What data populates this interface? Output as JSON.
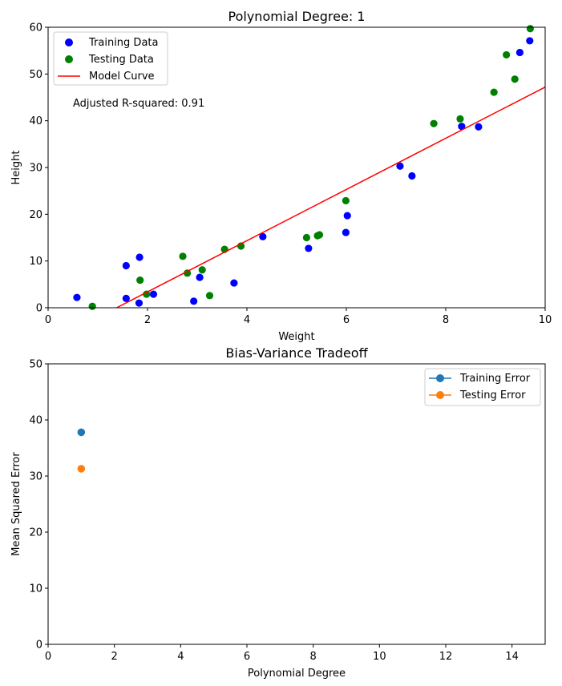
{
  "chart_data": [
    {
      "type": "scatter",
      "title": "Polynomial Degree: 1",
      "xlabel": "Weight",
      "ylabel": "Height",
      "xlim": [
        0,
        10
      ],
      "ylim": [
        0,
        60
      ],
      "xticks": [
        0,
        2,
        4,
        6,
        8,
        10
      ],
      "yticks": [
        0,
        10,
        20,
        30,
        40,
        50,
        60
      ],
      "grid": false,
      "legend_position": "top-left",
      "annotation": "Adjusted R-squared: 0.91",
      "series": [
        {
          "name": "Training Data",
          "kind": "scatter",
          "color": "#0000ff",
          "points": [
            [
              0.58,
              2.2
            ],
            [
              1.57,
              2.0
            ],
            [
              1.57,
              9.0
            ],
            [
              1.83,
              1.0
            ],
            [
              1.84,
              10.8
            ],
            [
              2.12,
              2.9
            ],
            [
              2.93,
              1.4
            ],
            [
              3.05,
              6.5
            ],
            [
              3.74,
              5.3
            ],
            [
              4.32,
              15.2
            ],
            [
              5.24,
              12.7
            ],
            [
              5.99,
              16.1
            ],
            [
              6.02,
              19.7
            ],
            [
              7.08,
              30.3
            ],
            [
              7.32,
              28.2
            ],
            [
              8.32,
              38.8
            ],
            [
              8.66,
              38.7
            ],
            [
              9.49,
              54.6
            ],
            [
              9.69,
              57.1
            ]
          ]
        },
        {
          "name": "Testing Data",
          "kind": "scatter",
          "color": "#008000",
          "points": [
            [
              0.89,
              0.3
            ],
            [
              1.85,
              5.9
            ],
            [
              1.98,
              2.9
            ],
            [
              2.71,
              11.0
            ],
            [
              2.8,
              7.4
            ],
            [
              3.1,
              8.1
            ],
            [
              3.25,
              2.6
            ],
            [
              3.55,
              12.5
            ],
            [
              3.88,
              13.2
            ],
            [
              5.2,
              15.0
            ],
            [
              5.42,
              15.4
            ],
            [
              5.46,
              15.6
            ],
            [
              5.99,
              22.9
            ],
            [
              7.76,
              39.4
            ],
            [
              8.29,
              40.4
            ],
            [
              8.97,
              46.1
            ],
            [
              9.22,
              54.1
            ],
            [
              9.39,
              48.9
            ],
            [
              9.7,
              59.7
            ]
          ]
        },
        {
          "name": "Model Curve",
          "kind": "line",
          "color": "#ff0000",
          "points": [
            [
              1.38,
              0.0
            ],
            [
              10.0,
              47.2
            ]
          ]
        }
      ]
    },
    {
      "type": "line",
      "title": "Bias-Variance Tradeoff",
      "xlabel": "Polynomial Degree",
      "ylabel": "Mean Squared Error",
      "xlim": [
        0,
        15
      ],
      "ylim": [
        0,
        50
      ],
      "xticks": [
        0,
        2,
        4,
        6,
        8,
        10,
        12,
        14
      ],
      "yticks": [
        0,
        10,
        20,
        30,
        40,
        50
      ],
      "grid": false,
      "legend_position": "top-right",
      "series": [
        {
          "name": "Training Error",
          "color": "#1f77b4",
          "x": [
            1
          ],
          "values": [
            37.8
          ]
        },
        {
          "name": "Testing Error",
          "color": "#ff7f0e",
          "x": [
            1
          ],
          "values": [
            31.3
          ]
        }
      ]
    }
  ]
}
